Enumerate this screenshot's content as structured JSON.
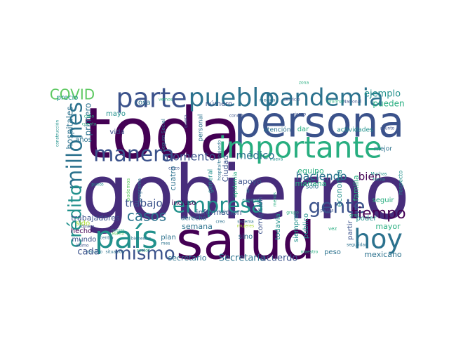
{
  "background": "#ffffff",
  "palette": {
    "dark_purple": "#440154",
    "purple": "#472d7b",
    "indigo": "#3b528b",
    "blue": "#2c728e",
    "teal": "#21918c",
    "green": "#28ae80",
    "lime": "#5ec962",
    "yellow": "#addc30"
  },
  "words": [
    {
      "text": "gobierno"
    },
    {
      "text": "toda"
    },
    {
      "text": "persona"
    },
    {
      "text": "salud"
    },
    {
      "text": "importante"
    },
    {
      "text": "país"
    },
    {
      "text": "hoy"
    },
    {
      "text": "parte"
    },
    {
      "text": "pueblo"
    },
    {
      "text": "pandemia"
    },
    {
      "text": "millones"
    },
    {
      "text": "manera"
    },
    {
      "text": "empresa"
    },
    {
      "text": "gente"
    },
    {
      "text": "mismo"
    },
    {
      "text": "crédito"
    },
    {
      "text": "tiempo"
    },
    {
      "text": "COVID"
    },
    {
      "text": "casos"
    },
    {
      "text": "momento"
    },
    {
      "text": "haciendo"
    },
    {
      "text": "médico"
    },
    {
      "text": "bien"
    },
    {
      "text": "trabajo"
    },
    {
      "text": "ejemplo"
    },
    {
      "text": "pueden"
    },
    {
      "text": "cada"
    },
    {
      "text": "hospitales"
    },
    {
      "text": "primero"
    },
    {
      "text": "Secretaría"
    },
    {
      "text": "acuerdo"
    },
    {
      "text": "trabajadores"
    },
    {
      "text": "información"
    },
    {
      "text": "secretario"
    },
    {
      "text": "mexicano"
    },
    {
      "text": "Ciudad"
    },
    {
      "text": "mayor"
    },
    {
      "text": "apoyo"
    },
    {
      "text": "economía"
    },
    {
      "text": "familia"
    },
    {
      "text": "semana"
    },
    {
      "text": "cuatro"
    },
    {
      "text": "mañana"
    },
    {
      "text": "equipo"
    },
    {
      "text": "número"
    },
    {
      "text": "vida"
    },
    {
      "text": "cosa"
    },
    {
      "text": "mayo"
    },
    {
      "text": "hecho"
    },
    {
      "text": "mundo"
    },
    {
      "text": "sido"
    },
    {
      "text": "años"
    },
    {
      "text": "precio"
    },
    {
      "text": "poder"
    },
    {
      "text": "seguir"
    },
    {
      "text": "mejor"
    },
    {
      "text": "incluso"
    },
    {
      "text": "derecho"
    },
    {
      "text": "plan"
    },
    {
      "text": "corrupción"
    },
    {
      "text": "todavía"
    },
    {
      "text": "siempre"
    },
    {
      "text": "público"
    },
    {
      "text": "partir"
    },
    {
      "text": "peso"
    },
    {
      "text": "sino"
    },
    {
      "text": "dar"
    },
    {
      "text": "atención"
    },
    {
      "text": "actividades"
    },
    {
      "text": "sólo"
    },
    {
      "text": "general"
    },
    {
      "text": "personal"
    },
    {
      "text": "ir"
    },
    {
      "text": "respecto"
    },
    {
      "text": "epidemia"
    },
    {
      "text": "zona"
    },
    {
      "text": "Seguro Social"
    },
    {
      "text": "programa"
    },
    {
      "text": "podemos"
    },
    {
      "text": "construcción"
    },
    {
      "text": "quiero"
    },
    {
      "text": "servicio"
    },
    {
      "text": "riesgo"
    },
    {
      "text": "asunto"
    },
    {
      "text": "Nacional"
    },
    {
      "text": "informar"
    },
    {
      "text": "medida"
    },
    {
      "text": "concer"
    },
    {
      "text": "vemos"
    },
    {
      "text": "hospital"
    },
    {
      "text": "trabajando"
    },
    {
      "text": "cinco"
    },
    {
      "text": "nueva"
    },
    {
      "text": "Muchas"
    },
    {
      "text": "forma"
    },
    {
      "text": "gran"
    },
    {
      "text": "vez"
    },
    {
      "text": "países"
    },
    {
      "text": "seguridad"
    },
    {
      "text": "grupo"
    },
    {
      "text": "maestro"
    },
    {
      "text": "mujeres"
    },
    {
      "text": "sistema"
    },
    {
      "text": "creo"
    },
    {
      "text": "seis"
    },
    {
      "text": "menos"
    },
    {
      "text": "económica"
    },
    {
      "text": "dinero"
    },
    {
      "text": "Marina"
    },
    {
      "text": "punto"
    },
    {
      "text": "cabo"
    },
    {
      "text": "cuenta"
    },
    {
      "text": "centro"
    },
    {
      "text": "bienestar"
    },
    {
      "text": "último"
    },
    {
      "text": "recurso"
    },
    {
      "text": "situación"
    },
    {
      "text": "sector"
    },
    {
      "text": "mes"
    },
    {
      "text": "nuevos"
    }
  ]
}
